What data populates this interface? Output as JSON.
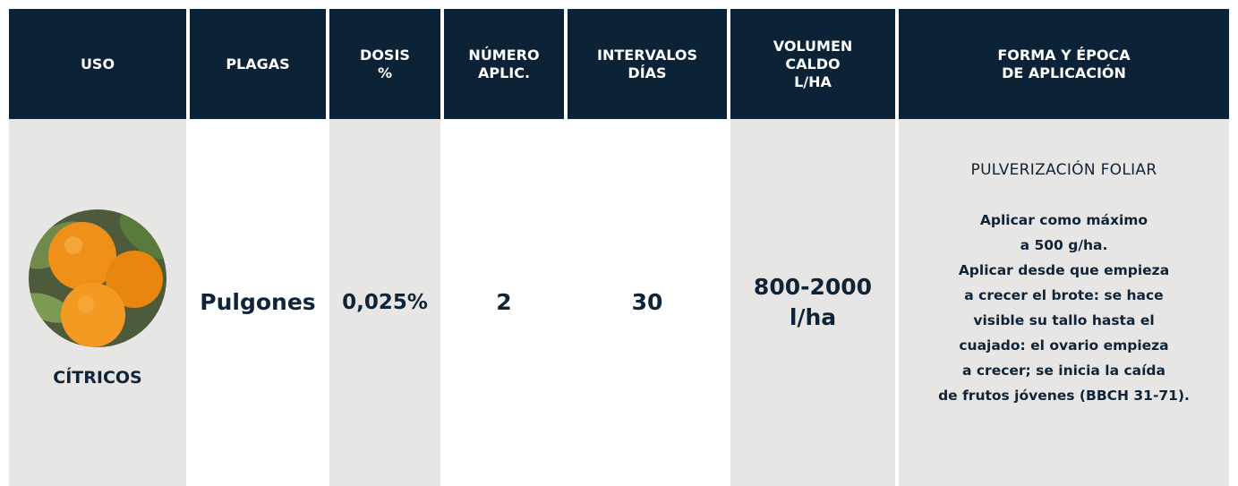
{
  "table": {
    "header": [
      [
        "USO"
      ],
      [
        "PLAGAS"
      ],
      [
        "DOSIS",
        "%"
      ],
      [
        "NÚMERO",
        "APLIC."
      ],
      [
        "INTERVALOS",
        "DÍAS"
      ],
      [
        "VOLUMEN",
        "CALDO",
        "L/HA"
      ],
      [
        "FORMA Y ÉPOCA",
        "DE APLICACIÓN"
      ]
    ],
    "row": {
      "uso": "CÍTRICOS",
      "plagas": "Pulgones",
      "dosis": "0,025%",
      "numero": 2,
      "intervalos": 30,
      "volumen": [
        "800-2000",
        "l/ha"
      ],
      "forma": {
        "title": "PULVERIZACIÓN FOLIAR",
        "lines": [
          "Aplicar como máximo",
          "a 500 g/ha.",
          "Aplicar desde que empieza",
          "a crecer el brote: se hace",
          "visible su tallo hasta el",
          "cuajado: el ovario empieza",
          "a crecer; se inicia la caída",
          "de frutos jóvenes (BBCH 31-71)."
        ]
      }
    }
  }
}
